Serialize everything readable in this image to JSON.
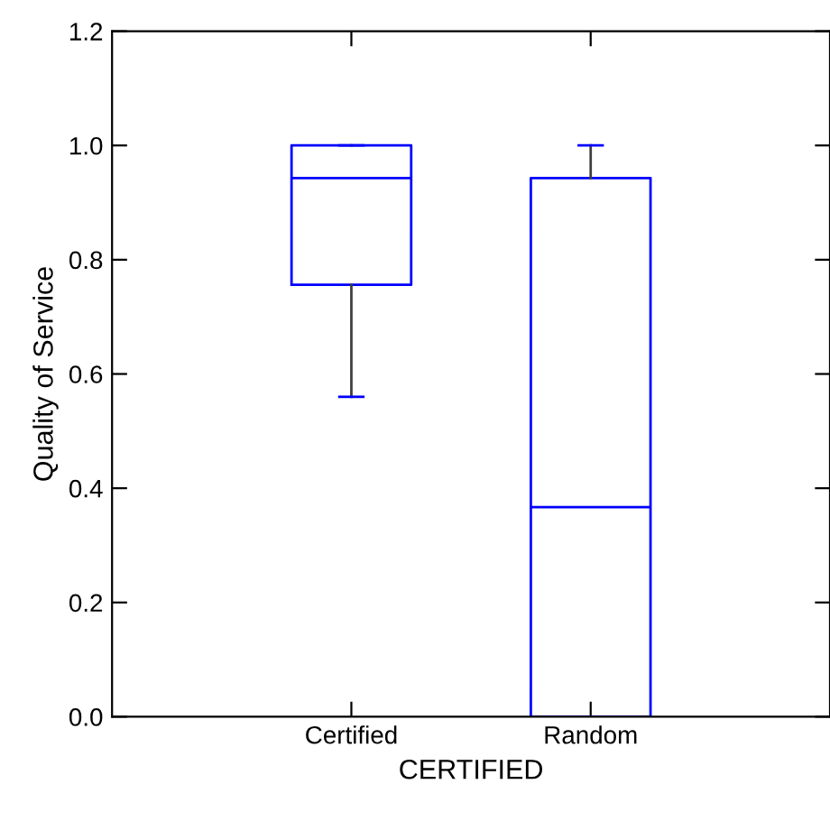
{
  "chart_data": {
    "type": "box",
    "xlabel": "CERTIFIED",
    "ylabel": "Quality of Service",
    "categories": [
      "Certified",
      "Random"
    ],
    "boxes": [
      {
        "low": 0.56,
        "q1": 0.756,
        "median": 0.943,
        "q3": 1.0,
        "high": 1.0
      },
      {
        "low": 0.0,
        "q1": 0.0,
        "median": 0.367,
        "q3": 0.943,
        "high": 1.0
      }
    ],
    "color": "#0000ff",
    "ylim": [
      0,
      1.2
    ],
    "yticks": [
      {
        "value": 0,
        "label": "0.0"
      },
      {
        "value": 0.2,
        "label": "0.2"
      },
      {
        "value": 0.4,
        "label": "0.4"
      },
      {
        "value": 0.6,
        "label": "0.6"
      },
      {
        "value": 0.8,
        "label": "0.8"
      },
      {
        "value": 1.0,
        "label": "1.0"
      },
      {
        "value": 1.2,
        "label": "1.2"
      }
    ],
    "grid": false
  }
}
